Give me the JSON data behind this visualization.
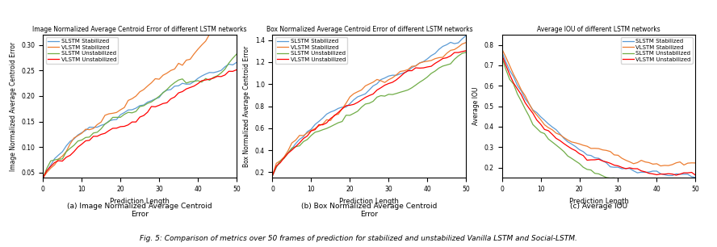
{
  "title1": "Image Normalized Average Centroid Error of different LSTM networks",
  "title2": "Box Normalized Average Centroid Error of different LSTM networks",
  "title3": "Average IOU of different LSTM networks",
  "ylabel1": "Image Normalized Average Centroid Error",
  "ylabel2": "Box Normalized Average Centroid Error",
  "ylabel3": "Average IOU",
  "xlabel": "Prediction Length",
  "caption_a": "(a) Image Normalized Average Centroid\nError",
  "caption_b": "(b) Box Normalized Average Centroid\nError",
  "caption_c": "(c) Average IOU",
  "fig_caption": "Fig. 5: Comparison of metrics over 50 frames of prediction for stabilized and unstabilized Vanilla LSTM and Social-LSTM.",
  "legend_labels": [
    "SLSTM Stabilized",
    "VLSTM Stabilized",
    "SLSTM Unstabilized",
    "VLSTM Unstabilized"
  ],
  "colors": [
    "#5b9bd5",
    "#ed7d31",
    "#70ad47",
    "#ff0000"
  ],
  "n_points": 51,
  "seed": 42,
  "xlim": [
    0,
    50
  ],
  "ylim1": [
    0.04,
    0.32
  ],
  "ylim2": [
    0.15,
    1.45
  ],
  "ylim3": [
    0.15,
    0.85
  ],
  "yticks1": [
    0.05,
    0.1,
    0.15,
    0.2,
    0.25,
    0.3
  ],
  "yticks2": [
    0.2,
    0.4,
    0.6,
    0.8,
    1.0,
    1.2,
    1.4
  ],
  "yticks3": [
    0.2,
    0.3,
    0.4,
    0.5,
    0.6,
    0.7,
    0.8
  ],
  "xticks": [
    0,
    10,
    20,
    30,
    40,
    50
  ]
}
